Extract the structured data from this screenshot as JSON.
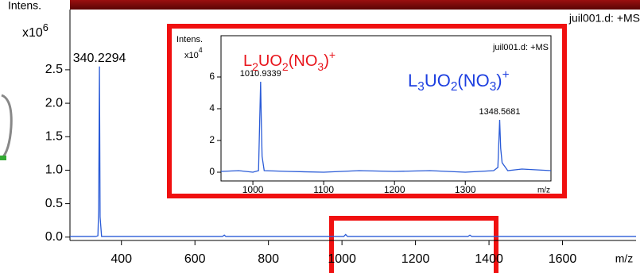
{
  "chart_data": [
    {
      "type": "line",
      "y_label": "Intens.",
      "y_unit_base": "x10",
      "y_unit_exp": "6",
      "x_label": "m/z",
      "note": "juil001.d: +MS",
      "x": [
        260,
        330,
        336,
        338,
        340.2294,
        342,
        346,
        400,
        500,
        600,
        675,
        680,
        684,
        750,
        900,
        1005,
        1010,
        1015,
        1200,
        1343,
        1348,
        1353,
        1500,
        1800
      ],
      "series": [
        {
          "color": "#2a5bd7",
          "values": [
            0.01,
            0.01,
            0.02,
            0.4,
            2.55,
            0.3,
            0.01,
            0.01,
            0.01,
            0.01,
            0.01,
            0.03,
            0.01,
            0.01,
            0.01,
            0.01,
            0.04,
            0.01,
            0.01,
            0.01,
            0.03,
            0.01,
            0.01,
            0.01
          ]
        }
      ],
      "xlim": [
        260,
        1800
      ],
      "ylim": [
        -0.05,
        3.4
      ],
      "xticks": [
        400,
        600,
        800,
        1000,
        1200,
        1400,
        1600
      ],
      "yticks": [
        {
          "value": 0,
          "label": "0.0"
        },
        0.5,
        {
          "value": 1,
          "label": "1.0"
        },
        1.5,
        {
          "value": 2,
          "label": "2.0"
        },
        2.5
      ],
      "peaks": [
        {
          "x": 340.2294,
          "y": 2.55
        }
      ],
      "grid": false
    },
    {
      "type": "line",
      "y_label": "Intens.",
      "y_unit_base": "x10",
      "y_unit_exp": "4",
      "x_label": "m/z",
      "note": "juil001.d: +MS",
      "x": [
        955,
        980,
        1000,
        1008,
        1010.9339,
        1012,
        1013,
        1016,
        1050,
        1100,
        1150,
        1200,
        1250,
        1300,
        1340,
        1346,
        1348.5681,
        1350,
        1352,
        1360,
        1380,
        1421
      ],
      "series": [
        {
          "color": "#2a5bd7",
          "values": [
            0.05,
            0.1,
            0,
            0.1,
            5.7,
            3,
            1,
            0.1,
            0.05,
            0,
            0.1,
            0.05,
            0.1,
            0,
            0.1,
            0.3,
            3.3,
            1.5,
            0.6,
            0.1,
            0.2,
            0.1
          ]
        }
      ],
      "xlim": [
        955,
        1421
      ],
      "ylim": [
        -0.55,
        8.6
      ],
      "xticks": [
        1000,
        1100,
        1200,
        1300
      ],
      "yticks": [
        0,
        2,
        4,
        6
      ],
      "peaks": [
        {
          "x": 1010.9339,
          "y": 5.7
        },
        {
          "x": 1348.5681,
          "y": 3.3
        }
      ],
      "grid": false,
      "formulas": [
        {
          "color": "#e8141b",
          "parts": [
            {
              "text": "L"
            },
            {
              "text": "2",
              "sub": true
            },
            {
              "text": "UO"
            },
            {
              "text": "2",
              "sub": true
            },
            {
              "text": "(NO"
            },
            {
              "text": "3",
              "sub": true
            },
            {
              "text": ")"
            },
            {
              "text": "+",
              "sup": true
            }
          ]
        },
        {
          "color": "#1d3fe0",
          "parts": [
            {
              "text": "L"
            },
            {
              "text": "3",
              "sub": true
            },
            {
              "text": "UO"
            },
            {
              "text": "2",
              "sub": true
            },
            {
              "text": "(NO"
            },
            {
              "text": "3",
              "sub": true
            },
            {
              "text": ")"
            },
            {
              "text": "+",
              "sup": true
            }
          ]
        }
      ]
    }
  ]
}
